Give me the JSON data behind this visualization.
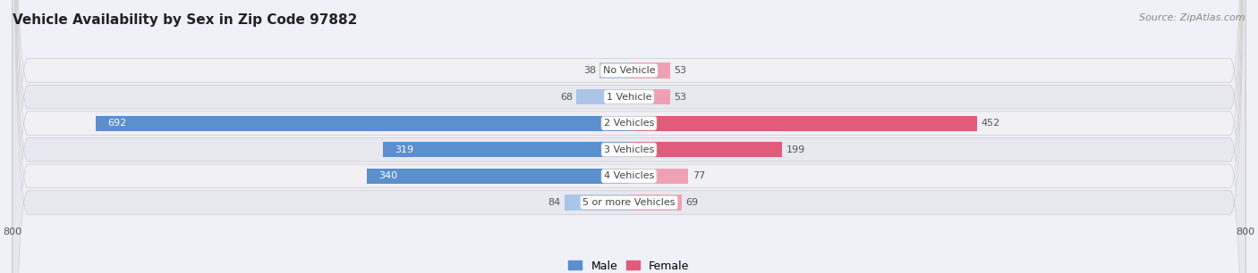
{
  "title": "Vehicle Availability by Sex in Zip Code 97882",
  "source": "Source: ZipAtlas.com",
  "categories": [
    "No Vehicle",
    "1 Vehicle",
    "2 Vehicles",
    "3 Vehicles",
    "4 Vehicles",
    "5 or more Vehicles"
  ],
  "male_values": [
    38,
    68,
    692,
    319,
    340,
    84
  ],
  "female_values": [
    53,
    53,
    452,
    199,
    77,
    69
  ],
  "male_color_large": "#5b8fce",
  "male_color_small": "#aac5e8",
  "female_color_large": "#e05c7a",
  "female_color_small": "#f0a0b5",
  "row_bg_color_odd": "#f0f0f5",
  "row_bg_color_even": "#e8e8f0",
  "xlim": [
    -800,
    800
  ],
  "xticks": [
    -800,
    800
  ],
  "title_fontsize": 11,
  "source_fontsize": 8,
  "value_fontsize": 8,
  "category_fontsize": 8,
  "legend_fontsize": 9,
  "bar_height": 0.58,
  "background_color": "#f0f0f8",
  "large_threshold": 150
}
